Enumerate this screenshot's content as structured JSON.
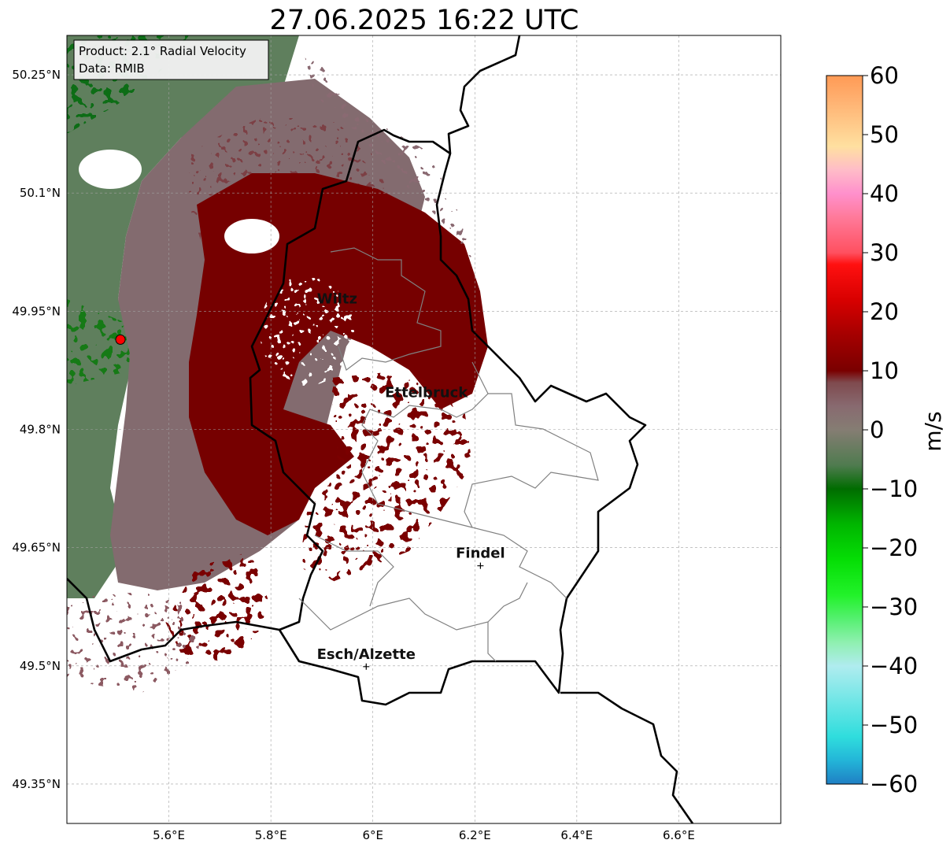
{
  "title": "27.06.2025 16:22 UTC",
  "info_box": {
    "line1": "Product: 2.1° Radial Velocity",
    "line2": "Data: RMIB"
  },
  "map": {
    "lon_range": [
      5.4,
      6.8
    ],
    "lat_range": [
      49.3,
      50.3
    ],
    "lat_ticks": [
      {
        "value": 50.25,
        "label": "50.25°N"
      },
      {
        "value": 50.1,
        "label": "50.1°N"
      },
      {
        "value": 49.95,
        "label": "49.95°N"
      },
      {
        "value": 49.8,
        "label": "49.8°N"
      },
      {
        "value": 49.65,
        "label": "49.65°N"
      },
      {
        "value": 49.5,
        "label": "49.5°N"
      },
      {
        "value": 49.35,
        "label": "49.35°N"
      }
    ],
    "lon_ticks": [
      {
        "value": 5.6,
        "label": "5.6°E"
      },
      {
        "value": 5.8,
        "label": "5.8°E"
      },
      {
        "value": 6.0,
        "label": "6°E"
      },
      {
        "value": 6.2,
        "label": "6.2°E"
      },
      {
        "value": 6.4,
        "label": "6.4°E"
      },
      {
        "value": 6.6,
        "label": "6.6°E"
      }
    ],
    "grid": true,
    "radar_site": {
      "lon": 5.505,
      "lat": 49.914,
      "color": "#ff0000"
    },
    "cities": [
      {
        "name": "Wiltz",
        "lon": 5.93,
        "lat": 49.966,
        "marker": false
      },
      {
        "name": "Ettelbruck",
        "lon": 6.105,
        "lat": 49.847,
        "marker": false
      },
      {
        "name": "Findel",
        "lon": 6.211,
        "lat": 49.627,
        "marker": true
      },
      {
        "name": "Esch/Alzette",
        "lon": 5.987,
        "lat": 49.499,
        "marker": true
      }
    ]
  },
  "colorbar": {
    "label": "m/s",
    "min": -60,
    "max": 60,
    "ticks": [
      {
        "value": 60,
        "label": "60"
      },
      {
        "value": 50,
        "label": "50"
      },
      {
        "value": 40,
        "label": "40"
      },
      {
        "value": 30,
        "label": "30"
      },
      {
        "value": 20,
        "label": "20"
      },
      {
        "value": 10,
        "label": "10"
      },
      {
        "value": 0,
        "label": "0"
      },
      {
        "value": -10,
        "label": "−10"
      },
      {
        "value": -20,
        "label": "−20"
      },
      {
        "value": -30,
        "label": "−30"
      },
      {
        "value": -40,
        "label": "−40"
      },
      {
        "value": -50,
        "label": "−50"
      },
      {
        "value": -60,
        "label": "−60"
      }
    ],
    "stops": [
      {
        "v": -60,
        "color": "#1f7fc4"
      },
      {
        "v": -56,
        "color": "#23b5d8"
      },
      {
        "v": -52,
        "color": "#2fdddd"
      },
      {
        "v": -46,
        "color": "#6fe6e6"
      },
      {
        "v": -40,
        "color": "#b0ecef"
      },
      {
        "v": -36,
        "color": "#8ff0b0"
      },
      {
        "v": -32,
        "color": "#55f070"
      },
      {
        "v": -28,
        "color": "#22f22a"
      },
      {
        "v": -22,
        "color": "#05de05"
      },
      {
        "v": -16,
        "color": "#00b600"
      },
      {
        "v": -10,
        "color": "#006c00"
      },
      {
        "v": -6,
        "color": "#4f7b4f"
      },
      {
        "v": 0,
        "color": "#857d73"
      },
      {
        "v": 4,
        "color": "#886a70"
      },
      {
        "v": 8,
        "color": "#7f4a4e"
      },
      {
        "v": 10,
        "color": "#7a0000"
      },
      {
        "v": 16,
        "color": "#a40000"
      },
      {
        "v": 22,
        "color": "#d80000"
      },
      {
        "v": 28,
        "color": "#ff1010"
      },
      {
        "v": 30,
        "color": "#ff5060"
      },
      {
        "v": 36,
        "color": "#ff7a9a"
      },
      {
        "v": 40,
        "color": "#ff90cc"
      },
      {
        "v": 44,
        "color": "#ffbcc8"
      },
      {
        "v": 48,
        "color": "#ffe0a0"
      },
      {
        "v": 52,
        "color": "#ffc888"
      },
      {
        "v": 56,
        "color": "#ffb070"
      },
      {
        "v": 60,
        "color": "#ff9a55"
      }
    ]
  }
}
